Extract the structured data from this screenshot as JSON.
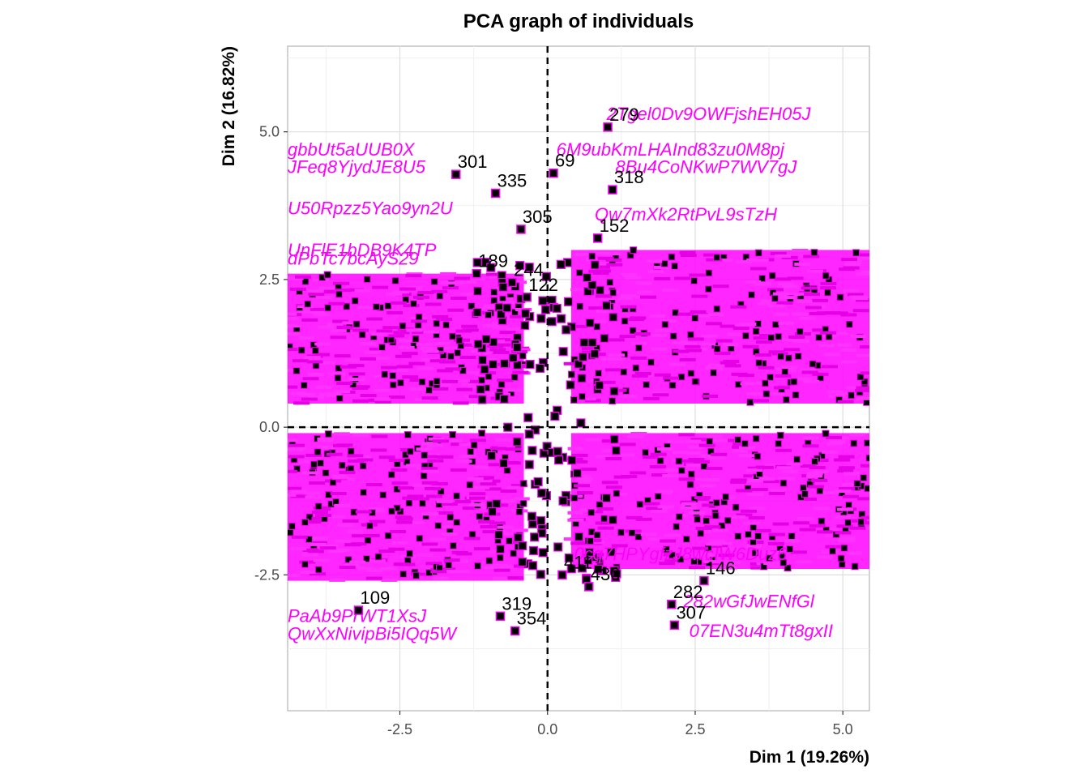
{
  "chart_data": {
    "type": "scatter",
    "title": "PCA graph of individuals",
    "xlabel": "Dim 1 (19.26%)",
    "ylabel": "Dim 2 (16.82%)",
    "xlim": [
      -4.4,
      5.45
    ],
    "ylim": [
      -4.8,
      6.45
    ],
    "xticks": [
      -2.5,
      0.0,
      2.5,
      5.0
    ],
    "yticks": [
      -2.5,
      0.0,
      2.5,
      5.0
    ],
    "tick_labels_x": [
      "-2.5",
      "0.0",
      "2.5",
      "5.0"
    ],
    "tick_labels_y": [
      "-2.5",
      "0.0",
      "2.5",
      "5.0"
    ],
    "grid": true,
    "reference_lines": {
      "x": 0,
      "y": 0,
      "style": "dashed"
    },
    "colors": {
      "point": "#000000",
      "point_edge": "#ff00ff",
      "supplementary_label": "#ff00ff",
      "label": "#000000"
    },
    "labeled_points": [
      {
        "label": "279",
        "x": 1.02,
        "y": 5.08
      },
      {
        "label": "69",
        "x": 0.1,
        "y": 4.3
      },
      {
        "label": "318",
        "x": 1.1,
        "y": 4.02
      },
      {
        "label": "301",
        "x": -1.55,
        "y": 4.28
      },
      {
        "label": "335",
        "x": -0.88,
        "y": 3.96
      },
      {
        "label": "305",
        "x": -0.45,
        "y": 3.35
      },
      {
        "label": "152",
        "x": 0.85,
        "y": 3.2
      },
      {
        "label": "189",
        "x": -1.2,
        "y": 2.6
      },
      {
        "label": "244",
        "x": -0.6,
        "y": 2.45
      },
      {
        "label": "122",
        "x": -0.35,
        "y": 2.2
      },
      {
        "label": "146",
        "x": 2.65,
        "y": -2.6
      },
      {
        "label": "411",
        "x": 0.25,
        "y": -2.5
      },
      {
        "label": "109",
        "x": -3.2,
        "y": -3.1
      },
      {
        "label": "319",
        "x": -0.8,
        "y": -3.2
      },
      {
        "label": "354",
        "x": -0.55,
        "y": -3.45
      },
      {
        "label": "282",
        "x": 2.1,
        "y": -3.0
      },
      {
        "label": "307",
        "x": 2.15,
        "y": -3.35
      },
      {
        "label": "430",
        "x": 0.7,
        "y": -2.7
      }
    ],
    "supplementary_labels": [
      {
        "label": "2Tgel0Dv9OWFjshEH05J",
        "x": 1.0,
        "y": 5.2
      },
      {
        "label": "6M9ubKmLHAInd83zu0M8pj",
        "x": 0.15,
        "y": 4.6
      },
      {
        "label": "8Bu4CoNKwP7WV7gJ",
        "x": 1.15,
        "y": 4.3
      },
      {
        "label": "gbbUt5aUUB0X",
        "x": -4.4,
        "y": 4.6
      },
      {
        "label": "JFeq8YjydJE8U5",
        "x": -4.4,
        "y": 4.3
      },
      {
        "label": "U50Rpzz5Yao9yn2U",
        "x": -4.4,
        "y": 3.6
      },
      {
        "label": "Qw7mXk2RtPvL9sTzH",
        "x": 0.8,
        "y": 3.5
      },
      {
        "label": "UnFlE1bDB9K4TP",
        "x": -4.4,
        "y": 2.9
      },
      {
        "label": "dPbTc7bcAyS29",
        "x": -4.4,
        "y": 2.75
      },
      {
        "label": "QwXxNivipBi5IQq5W",
        "x": -4.4,
        "y": -3.6
      },
      {
        "label": "PaAb9PrWT1XsJ",
        "x": -4.4,
        "y": -3.3
      },
      {
        "label": "282wGfJwENfGl",
        "x": 2.3,
        "y": -3.05
      },
      {
        "label": "07EN3u4mTt8gxII",
        "x": 2.4,
        "y": -3.55
      },
      {
        "label": "0cq7HPYgfzJ8wcIW6Duz6",
        "x": 0.45,
        "y": -2.25
      }
    ]
  }
}
